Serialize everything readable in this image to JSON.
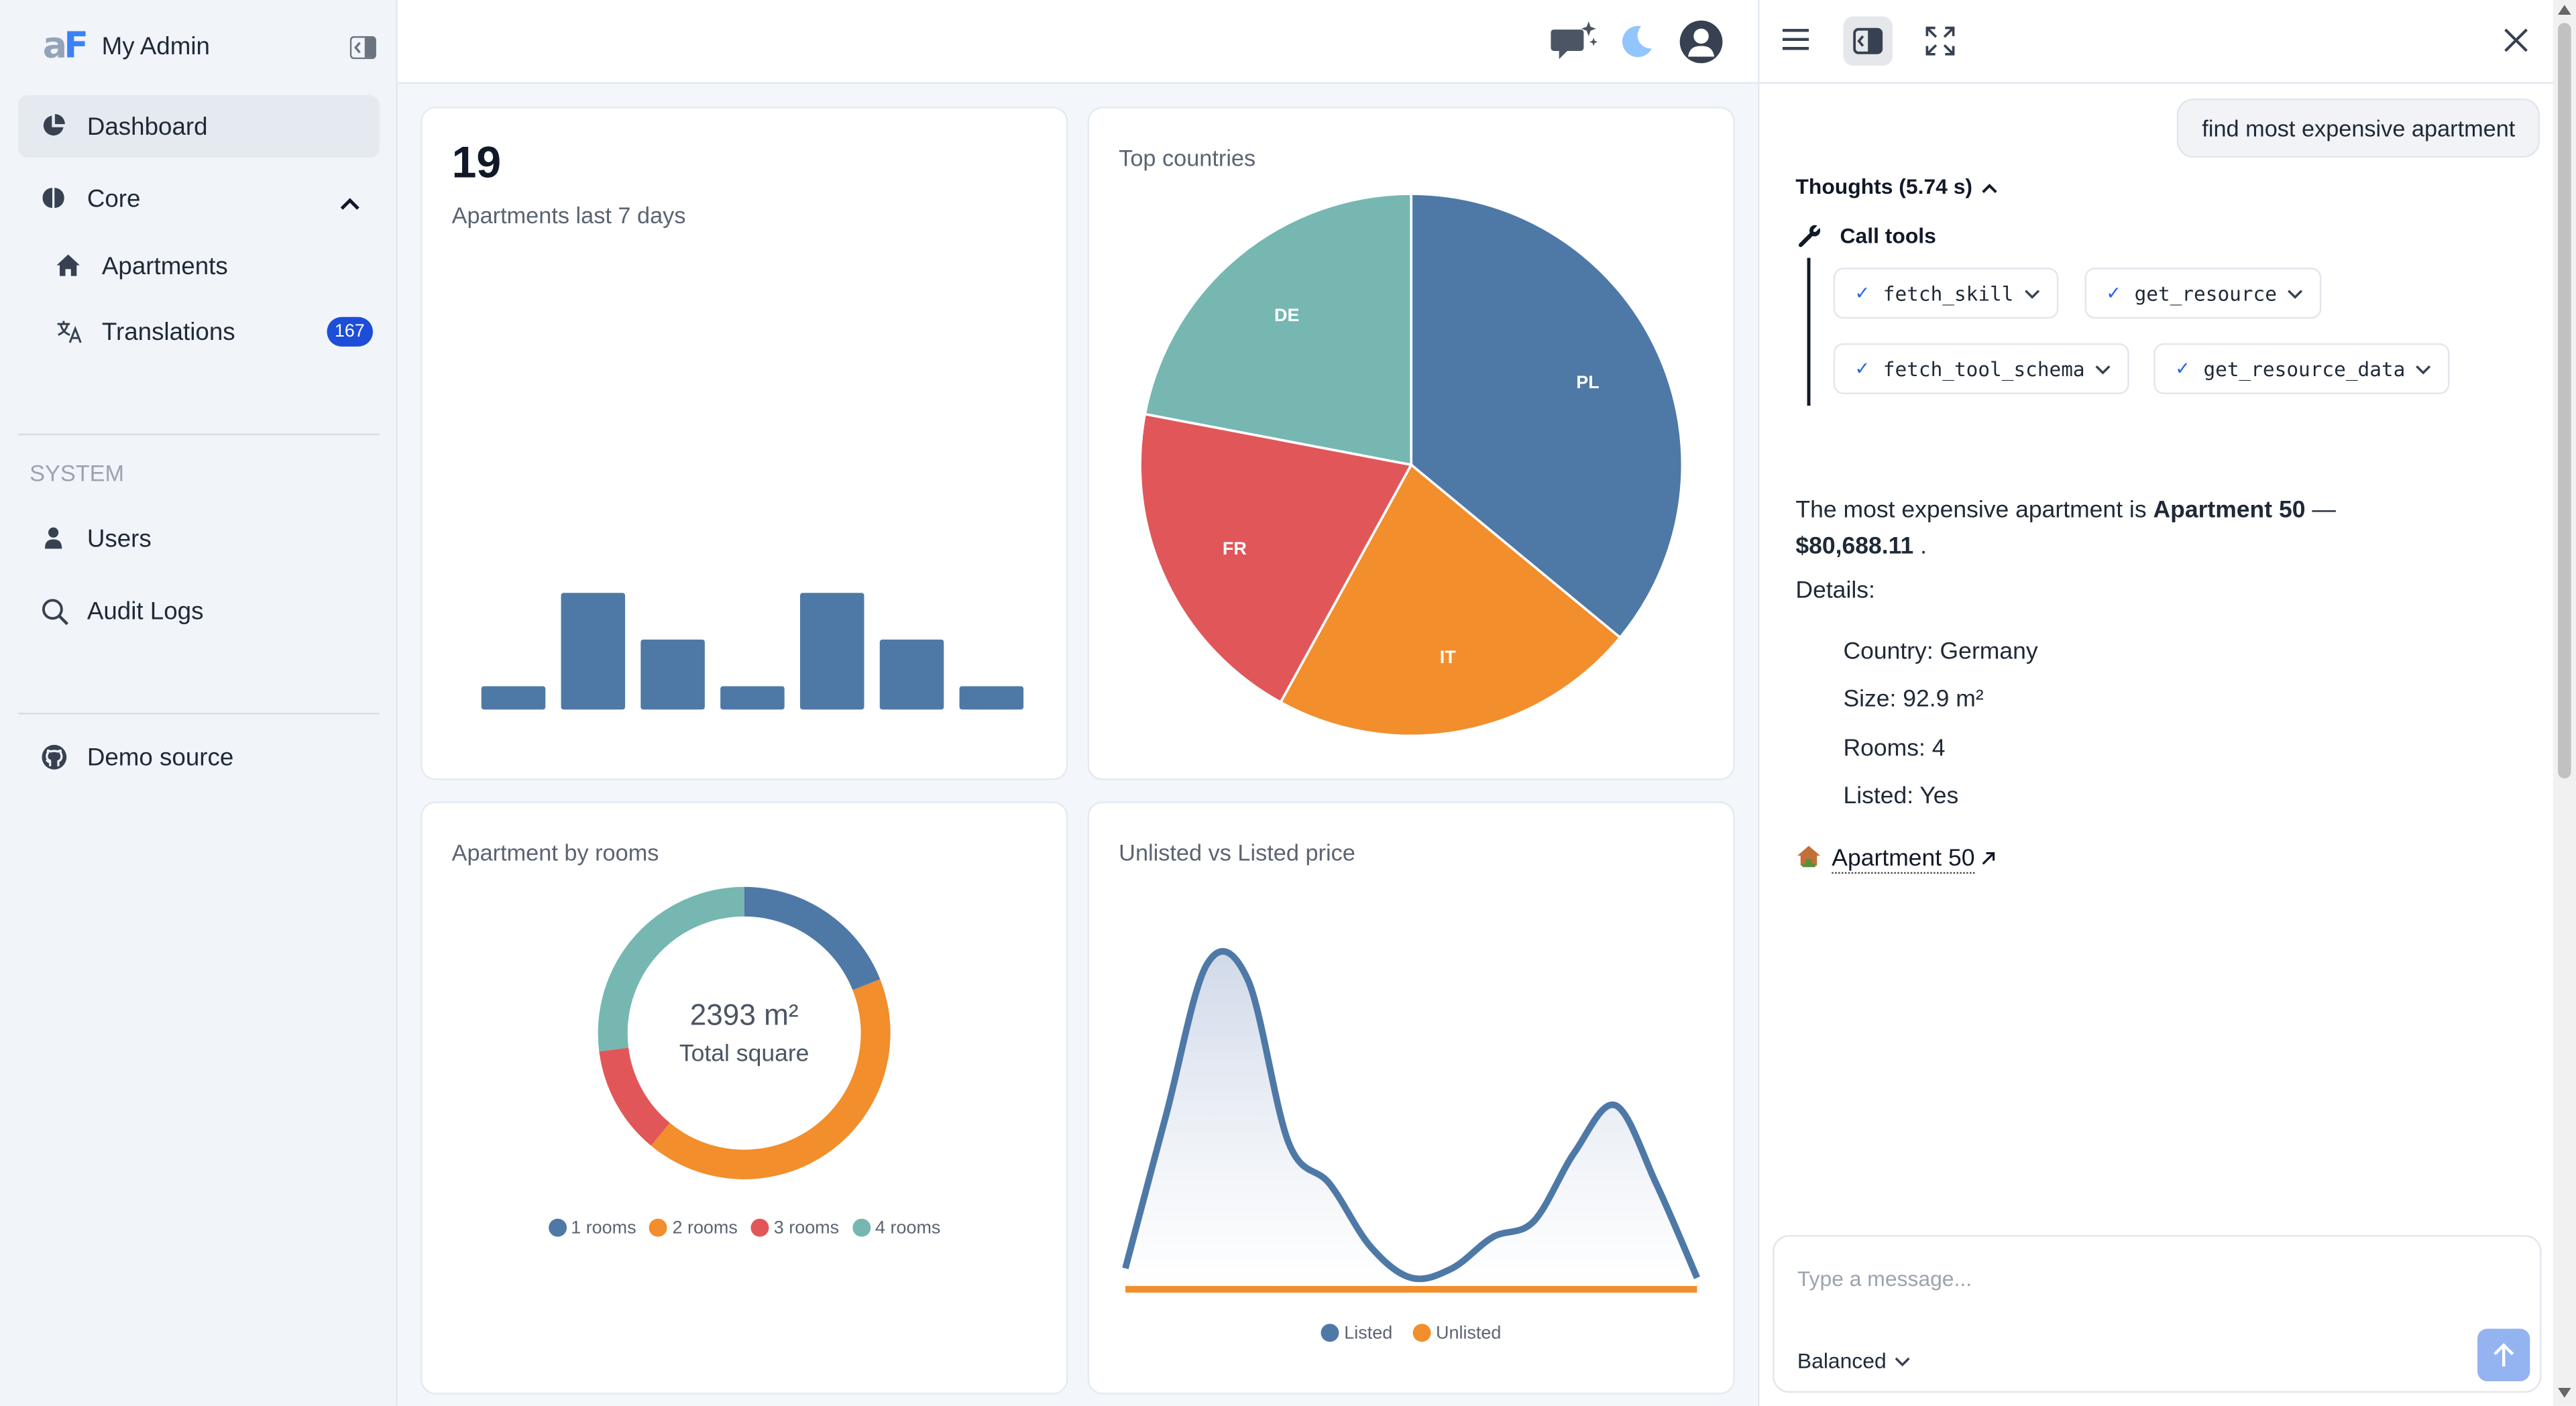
{
  "app": {
    "logo_a": "a",
    "logo_f": "F",
    "name": "My Admin"
  },
  "sidebar": {
    "dashboard": "Dashboard",
    "core": "Core",
    "apartments": "Apartments",
    "translations": "Translations",
    "translations_badge": "167",
    "system_section": "SYSTEM",
    "users": "Users",
    "audit_logs": "Audit Logs",
    "demo_source": "Demo source"
  },
  "cards": {
    "apartments": {
      "value": "19",
      "label": "Apartments last 7 days",
      "chart_data": {
        "type": "bar",
        "values": [
          1,
          5,
          3,
          1,
          5,
          3,
          1
        ]
      }
    },
    "top_countries": {
      "title": "Top countries",
      "chart_data": {
        "type": "pie",
        "slices": [
          {
            "label": "PL",
            "value": 36,
            "color": "#4e79a7"
          },
          {
            "label": "IT",
            "value": 22,
            "color": "#f28e2b"
          },
          {
            "label": "FR",
            "value": 20,
            "color": "#e15759"
          },
          {
            "label": "DE",
            "value": 22,
            "color": "#76b7b2"
          }
        ]
      }
    },
    "by_rooms": {
      "title": "Apartment by rooms",
      "center_value": "2393 m²",
      "center_label": "Total square",
      "chart_data": {
        "type": "pie",
        "slices": [
          {
            "label": "1 rooms",
            "value": 19,
            "color": "#4e79a7"
          },
          {
            "label": "2 rooms",
            "value": 42,
            "color": "#f28e2b"
          },
          {
            "label": "3 rooms",
            "value": 12,
            "color": "#e15759"
          },
          {
            "label": "4 rooms",
            "value": 27,
            "color": "#76b7b2"
          }
        ]
      }
    },
    "price": {
      "title": "Unlisted vs Listed price",
      "legend_listed": "Listed",
      "legend_unlisted": "Unlisted",
      "chart_data": {
        "type": "area",
        "series": [
          {
            "name": "Listed",
            "color": "#4e79a7",
            "values": [
              0.03,
              0.52,
              1.0,
              0.95,
              0.43,
              0.3,
              0.1,
              0.0,
              0.03,
              0.13,
              0.18,
              0.4,
              0.55,
              0.3,
              0.0
            ]
          },
          {
            "name": "Unlisted",
            "color": "#f28e2b",
            "values": [
              0,
              0,
              0,
              0,
              0,
              0,
              0,
              0,
              0,
              0,
              0,
              0,
              0,
              0,
              0
            ]
          }
        ]
      }
    }
  },
  "chat": {
    "user_message": "find most expensive apartment",
    "thoughts": "Thoughts (5.74 s)",
    "call_tools": "Call tools",
    "tools": [
      "fetch_skill",
      "get_resource",
      "fetch_tool_schema",
      "get_resource_data"
    ],
    "answer_pre": "The most expensive apartment is ",
    "answer_name": "Apartment 50",
    "answer_mid": " — ",
    "answer_price": "$80,688.11",
    "answer_post": " .",
    "details_label": "Details:",
    "details": [
      "Country: Germany",
      "Size: 92.9 m²",
      "Rooms: 4",
      "Listed: Yes"
    ],
    "link_label": "Apartment 50",
    "input_placeholder": "Type a message...",
    "mode": "Balanced"
  }
}
